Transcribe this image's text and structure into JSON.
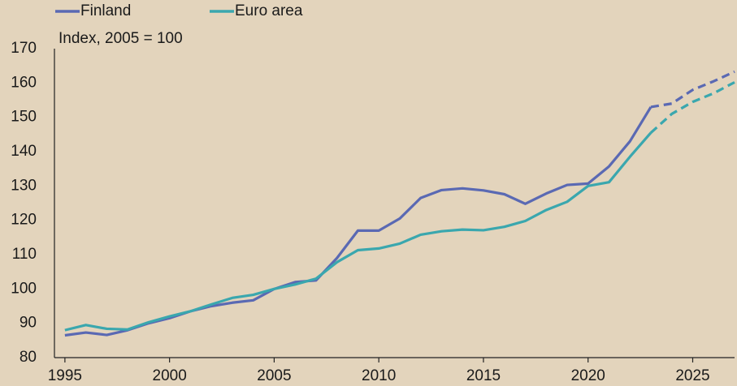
{
  "chart_data": {
    "type": "line",
    "y_label": "Index, 2005 = 100",
    "x": [
      1995,
      1996,
      1997,
      1998,
      1999,
      2000,
      2001,
      2002,
      2003,
      2004,
      2005,
      2006,
      2007,
      2008,
      2009,
      2010,
      2011,
      2012,
      2013,
      2014,
      2015,
      2016,
      2017,
      2018,
      2019,
      2020,
      2021,
      2022,
      2023,
      2024,
      2025,
      2026,
      2027
    ],
    "series": [
      {
        "name": "Finland",
        "color": "#5a69b3",
        "values": [
          86.5,
          87.3,
          86.6,
          88,
          90,
          91.5,
          93.5,
          95,
          96,
          96.7,
          100,
          102,
          102.5,
          109,
          117,
          117,
          120.5,
          126.5,
          128.8,
          129.3,
          128.7,
          127.6,
          124.8,
          127.8,
          130.3,
          130.7,
          135.7,
          143,
          153,
          154,
          158,
          160.5,
          163.3
        ]
      },
      {
        "name": "Euro area",
        "color": "#3aa7ae",
        "values": [
          88,
          89.5,
          88.4,
          88.2,
          90.3,
          92,
          93.5,
          95.5,
          97.4,
          98.3,
          100,
          101.3,
          103,
          107.8,
          111.3,
          111.8,
          113.2,
          115.8,
          116.8,
          117.3,
          117.1,
          118.1,
          119.8,
          123,
          125.4,
          130,
          131.1,
          138.5,
          145.5,
          151,
          154.5,
          157,
          160.2
        ]
      }
    ],
    "dashed_from": 2023,
    "xlim": [
      1994.5,
      2027
    ],
    "xticks": [
      1995,
      2000,
      2005,
      2010,
      2015,
      2020,
      2025
    ],
    "ylim": [
      80,
      170
    ],
    "yticks": [
      80,
      90,
      100,
      110,
      120,
      130,
      140,
      150,
      160,
      170
    ],
    "grid": false
  }
}
